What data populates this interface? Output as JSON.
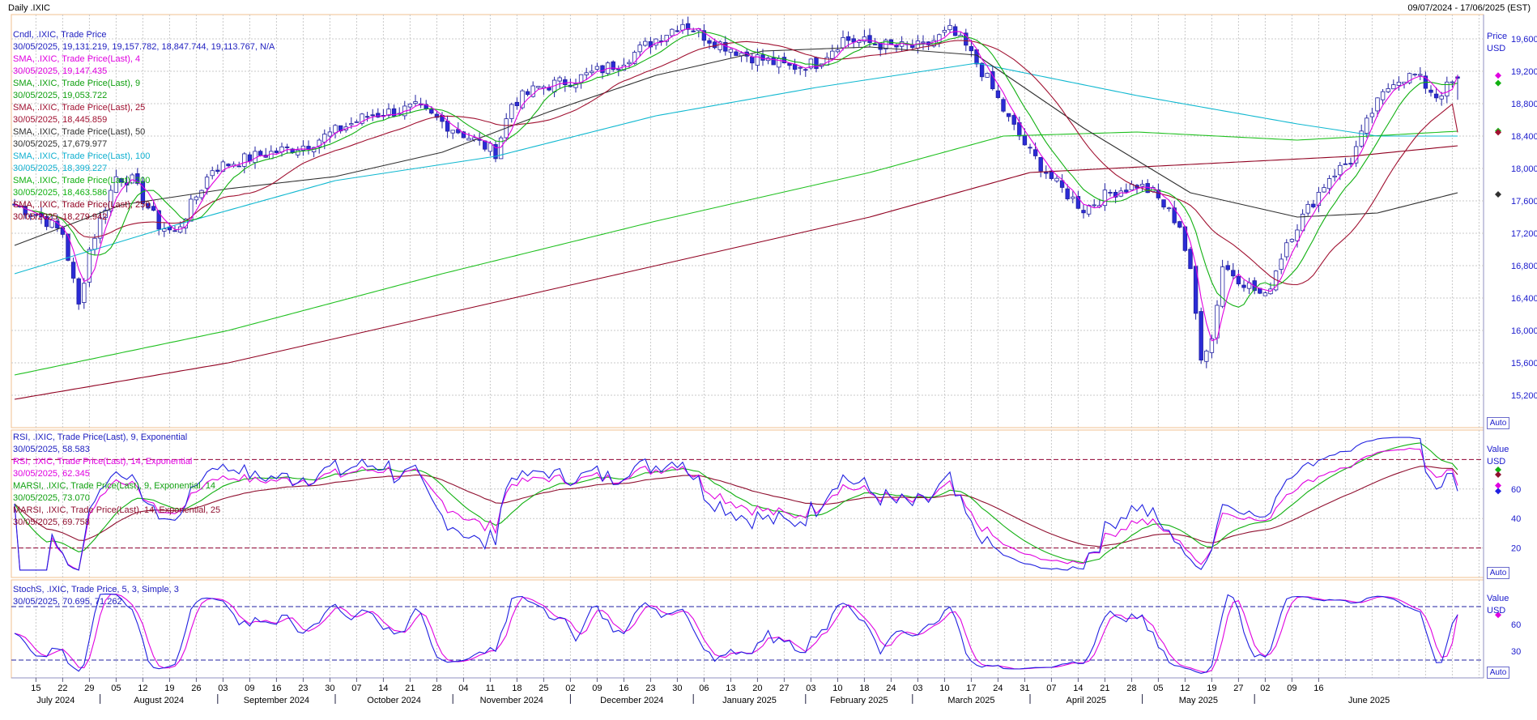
{
  "header": {
    "left": "Daily .IXIC",
    "right": "09/07/2024 - 17/06/2025 (EST)"
  },
  "colors": {
    "candle_up": "#ffffff",
    "candle_down": "#2b2bd6",
    "candle_edge": "#2020a0",
    "sma4": "#e000e0",
    "sma9": "#10b010",
    "sma25": "#a01030",
    "sma50": "#303030",
    "sma100": "#10b8d0",
    "sma200": "#20c020",
    "sma250": "#900020",
    "rsi9": "#2020e0",
    "rsi14": "#e000e0",
    "marsi9": "#10b010",
    "marsi14": "#901030",
    "stoch_k": "#2020e0",
    "stoch_d": "#e000e0",
    "grid": "#c8c8c8",
    "panel_border": "#f0c090"
  },
  "price_panel": {
    "axis_title": "Price",
    "axis_unit": "USD",
    "auto_label": "Auto",
    "y_ticks": [
      "19,600",
      "19,200",
      "18,800",
      "18,400",
      "18,000",
      "17,600",
      "17,200",
      "16,800",
      "16,400",
      "16,000",
      "15,600",
      "15,200"
    ],
    "legend": [
      {
        "text": "Cndl, .IXIC, Trade Price",
        "color": "#2020c0"
      },
      {
        "text": "30/05/2025, 19,131.219, 19,157.782, 18,847.744, 19,113.767, N/A",
        "color": "#2020c0"
      },
      {
        "text": "SMA, .IXIC, Trade Price(Last),  4",
        "color": "#e000e0"
      },
      {
        "text": "30/05/2025, 19,147.435",
        "color": "#e000e0"
      },
      {
        "text": "SMA, .IXIC, Trade Price(Last),  9",
        "color": "#10a010"
      },
      {
        "text": "30/05/2025, 19,053.722",
        "color": "#10a010"
      },
      {
        "text": "SMA, .IXIC, Trade Price(Last),  25",
        "color": "#a01030"
      },
      {
        "text": "30/05/2025, 18,445.859",
        "color": "#a01030"
      },
      {
        "text": "SMA, .IXIC, Trade Price(Last),  50",
        "color": "#303030"
      },
      {
        "text": "30/05/2025, 17,679.977",
        "color": "#303030"
      },
      {
        "text": "SMA, .IXIC, Trade Price(Last),  100",
        "color": "#10b0d0"
      },
      {
        "text": "30/05/2025, 18,399.227",
        "color": "#10b0d0"
      },
      {
        "text": "SMA, .IXIC, Trade Price(Last),  200",
        "color": "#10b010"
      },
      {
        "text": "30/05/2025, 18,463.586",
        "color": "#10b010"
      },
      {
        "text": "SMA, .IXIC, Trade Price(Last),  250",
        "color": "#900020"
      },
      {
        "text": "30/05/2025, 18,279.942",
        "color": "#900020"
      }
    ]
  },
  "rsi_panel": {
    "axis_title": "Value",
    "axis_unit": "USD",
    "auto_label": "Auto",
    "y_ticks": [
      "60",
      "40",
      "20"
    ],
    "legend": [
      {
        "text": "RSI, .IXIC, Trade Price(Last),  9, Exponential",
        "color": "#2020c0"
      },
      {
        "text": "30/05/2025, 58.583",
        "color": "#2020c0"
      },
      {
        "text": "RSI, .IXIC, Trade Price(Last),  14, Exponential",
        "color": "#e000e0"
      },
      {
        "text": "30/05/2025, 62.345",
        "color": "#e000e0"
      },
      {
        "text": "MARSI, .IXIC, Trade Price(Last),  9, Exponential, 14",
        "color": "#10a010"
      },
      {
        "text": "30/05/2025, 73.070",
        "color": "#10a010"
      },
      {
        "text": "MARSI, .IXIC, Trade Price(Last),  14, Exponential, 25",
        "color": "#901030"
      },
      {
        "text": "30/05/2025, 69.758",
        "color": "#901030"
      }
    ]
  },
  "stoch_panel": {
    "axis_title": "Value",
    "axis_unit": "USD",
    "auto_label": "Auto",
    "y_ticks": [
      "60",
      "30"
    ],
    "legend": [
      {
        "text": "StochS, .IXIC, Trade Price,  5, 3, Simple, 3",
        "color": "#2020c0"
      },
      {
        "text": "30/05/2025, 70.695, 71.262",
        "color": "#2020c0",
        "extra_color": "#e000e0"
      }
    ]
  },
  "x_axis": {
    "day_labels": [
      "15",
      "22",
      "29",
      "05",
      "12",
      "19",
      "26",
      "03",
      "09",
      "16",
      "23",
      "30",
      "07",
      "14",
      "21",
      "28",
      "04",
      "11",
      "18",
      "25",
      "02",
      "09",
      "16",
      "23",
      "30",
      "06",
      "13",
      "20",
      "27",
      "03",
      "10",
      "18",
      "24",
      "03",
      "10",
      "17",
      "24",
      "31",
      "07",
      "14",
      "21",
      "28",
      "05",
      "12",
      "19",
      "27",
      "02",
      "09",
      "16"
    ],
    "month_labels": [
      "July 2024",
      "August 2024",
      "September 2024",
      "October 2024",
      "November 2024",
      "December 2024",
      "January 2025",
      "February 2025",
      "March 2025",
      "April 2025",
      "May 2025",
      "June 2025"
    ]
  },
  "chart_data": {
    "type": "candlestick",
    "instrument": ".IXIC",
    "range": "09/07/2024 - 17/06/2025",
    "ylim_price": [
      14800,
      19900
    ],
    "ylim_rsi": [
      0,
      100
    ],
    "ylim_stoch": [
      0,
      110
    ],
    "price_anchors": [
      [
        0,
        17550
      ],
      [
        5,
        17400
      ],
      [
        9,
        17200
      ],
      [
        12,
        16300
      ],
      [
        14,
        17000
      ],
      [
        19,
        17900
      ],
      [
        22,
        17850
      ],
      [
        27,
        17300
      ],
      [
        30,
        17200
      ],
      [
        37,
        18000
      ],
      [
        45,
        18150
      ],
      [
        55,
        18300
      ],
      [
        66,
        18650
      ],
      [
        75,
        18750
      ],
      [
        82,
        18500
      ],
      [
        90,
        18200
      ],
      [
        93,
        18800
      ],
      [
        98,
        19000
      ],
      [
        105,
        19100
      ],
      [
        113,
        19300
      ],
      [
        120,
        19600
      ],
      [
        125,
        19800
      ],
      [
        130,
        19600
      ],
      [
        137,
        19400
      ],
      [
        145,
        19250
      ],
      [
        150,
        19300
      ],
      [
        155,
        19600
      ],
      [
        165,
        19500
      ],
      [
        170,
        19500
      ],
      [
        175,
        19700
      ],
      [
        178,
        19500
      ],
      [
        182,
        19100
      ],
      [
        186,
        18600
      ],
      [
        190,
        18200
      ],
      [
        195,
        17800
      ],
      [
        200,
        17500
      ],
      [
        205,
        17700
      ],
      [
        210,
        17800
      ],
      [
        213,
        17700
      ],
      [
        218,
        17300
      ],
      [
        220,
        16700
      ],
      [
        222,
        15700
      ],
      [
        224,
        15900
      ],
      [
        226,
        16800
      ],
      [
        230,
        16600
      ],
      [
        234,
        16400
      ],
      [
        238,
        17100
      ],
      [
        242,
        17500
      ],
      [
        246,
        17900
      ],
      [
        250,
        18100
      ],
      [
        254,
        18700
      ],
      [
        258,
        19100
      ],
      [
        262,
        19150
      ],
      [
        266,
        18900
      ],
      [
        270,
        19100
      ]
    ],
    "sma_anchors": {
      "sma50": [
        [
          0,
          17050
        ],
        [
          20,
          17550
        ],
        [
          40,
          17750
        ],
        [
          60,
          17900
        ],
        [
          80,
          18200
        ],
        [
          100,
          18700
        ],
        [
          120,
          19150
        ],
        [
          140,
          19450
        ],
        [
          160,
          19500
        ],
        [
          180,
          19400
        ],
        [
          200,
          18500
        ],
        [
          220,
          17700
        ],
        [
          240,
          17400
        ],
        [
          255,
          17450
        ],
        [
          270,
          17700
        ]
      ],
      "sma100": [
        [
          0,
          16700
        ],
        [
          30,
          17300
        ],
        [
          60,
          17850
        ],
        [
          90,
          18150
        ],
        [
          120,
          18650
        ],
        [
          150,
          19000
        ],
        [
          180,
          19300
        ],
        [
          210,
          18900
        ],
        [
          240,
          18550
        ],
        [
          255,
          18400
        ],
        [
          270,
          18400
        ]
      ],
      "sma200": [
        [
          0,
          15450
        ],
        [
          40,
          16000
        ],
        [
          80,
          16700
        ],
        [
          120,
          17350
        ],
        [
          160,
          17950
        ],
        [
          185,
          18400
        ],
        [
          210,
          18450
        ],
        [
          240,
          18350
        ],
        [
          270,
          18460
        ]
      ],
      "sma250": [
        [
          0,
          15150
        ],
        [
          40,
          15600
        ],
        [
          80,
          16200
        ],
        [
          120,
          16800
        ],
        [
          160,
          17400
        ],
        [
          190,
          17950
        ],
        [
          220,
          18050
        ],
        [
          250,
          18150
        ],
        [
          270,
          18280
        ]
      ]
    },
    "last_values": {
      "candle": {
        "date": "30/05/2025",
        "open": 19131.219,
        "high": 19157.782,
        "low": 18847.744,
        "close": 19113.767
      },
      "sma4": 19147.435,
      "sma9": 19053.722,
      "sma25": 18445.859,
      "sma50": 17679.977,
      "sma100": 18399.227,
      "sma200": 18463.586,
      "sma250": 18279.942,
      "rsi9": 58.583,
      "rsi14": 62.345,
      "marsi9": 73.07,
      "marsi14": 69.758,
      "stoch_k": 70.695,
      "stoch_d": 71.262
    }
  }
}
